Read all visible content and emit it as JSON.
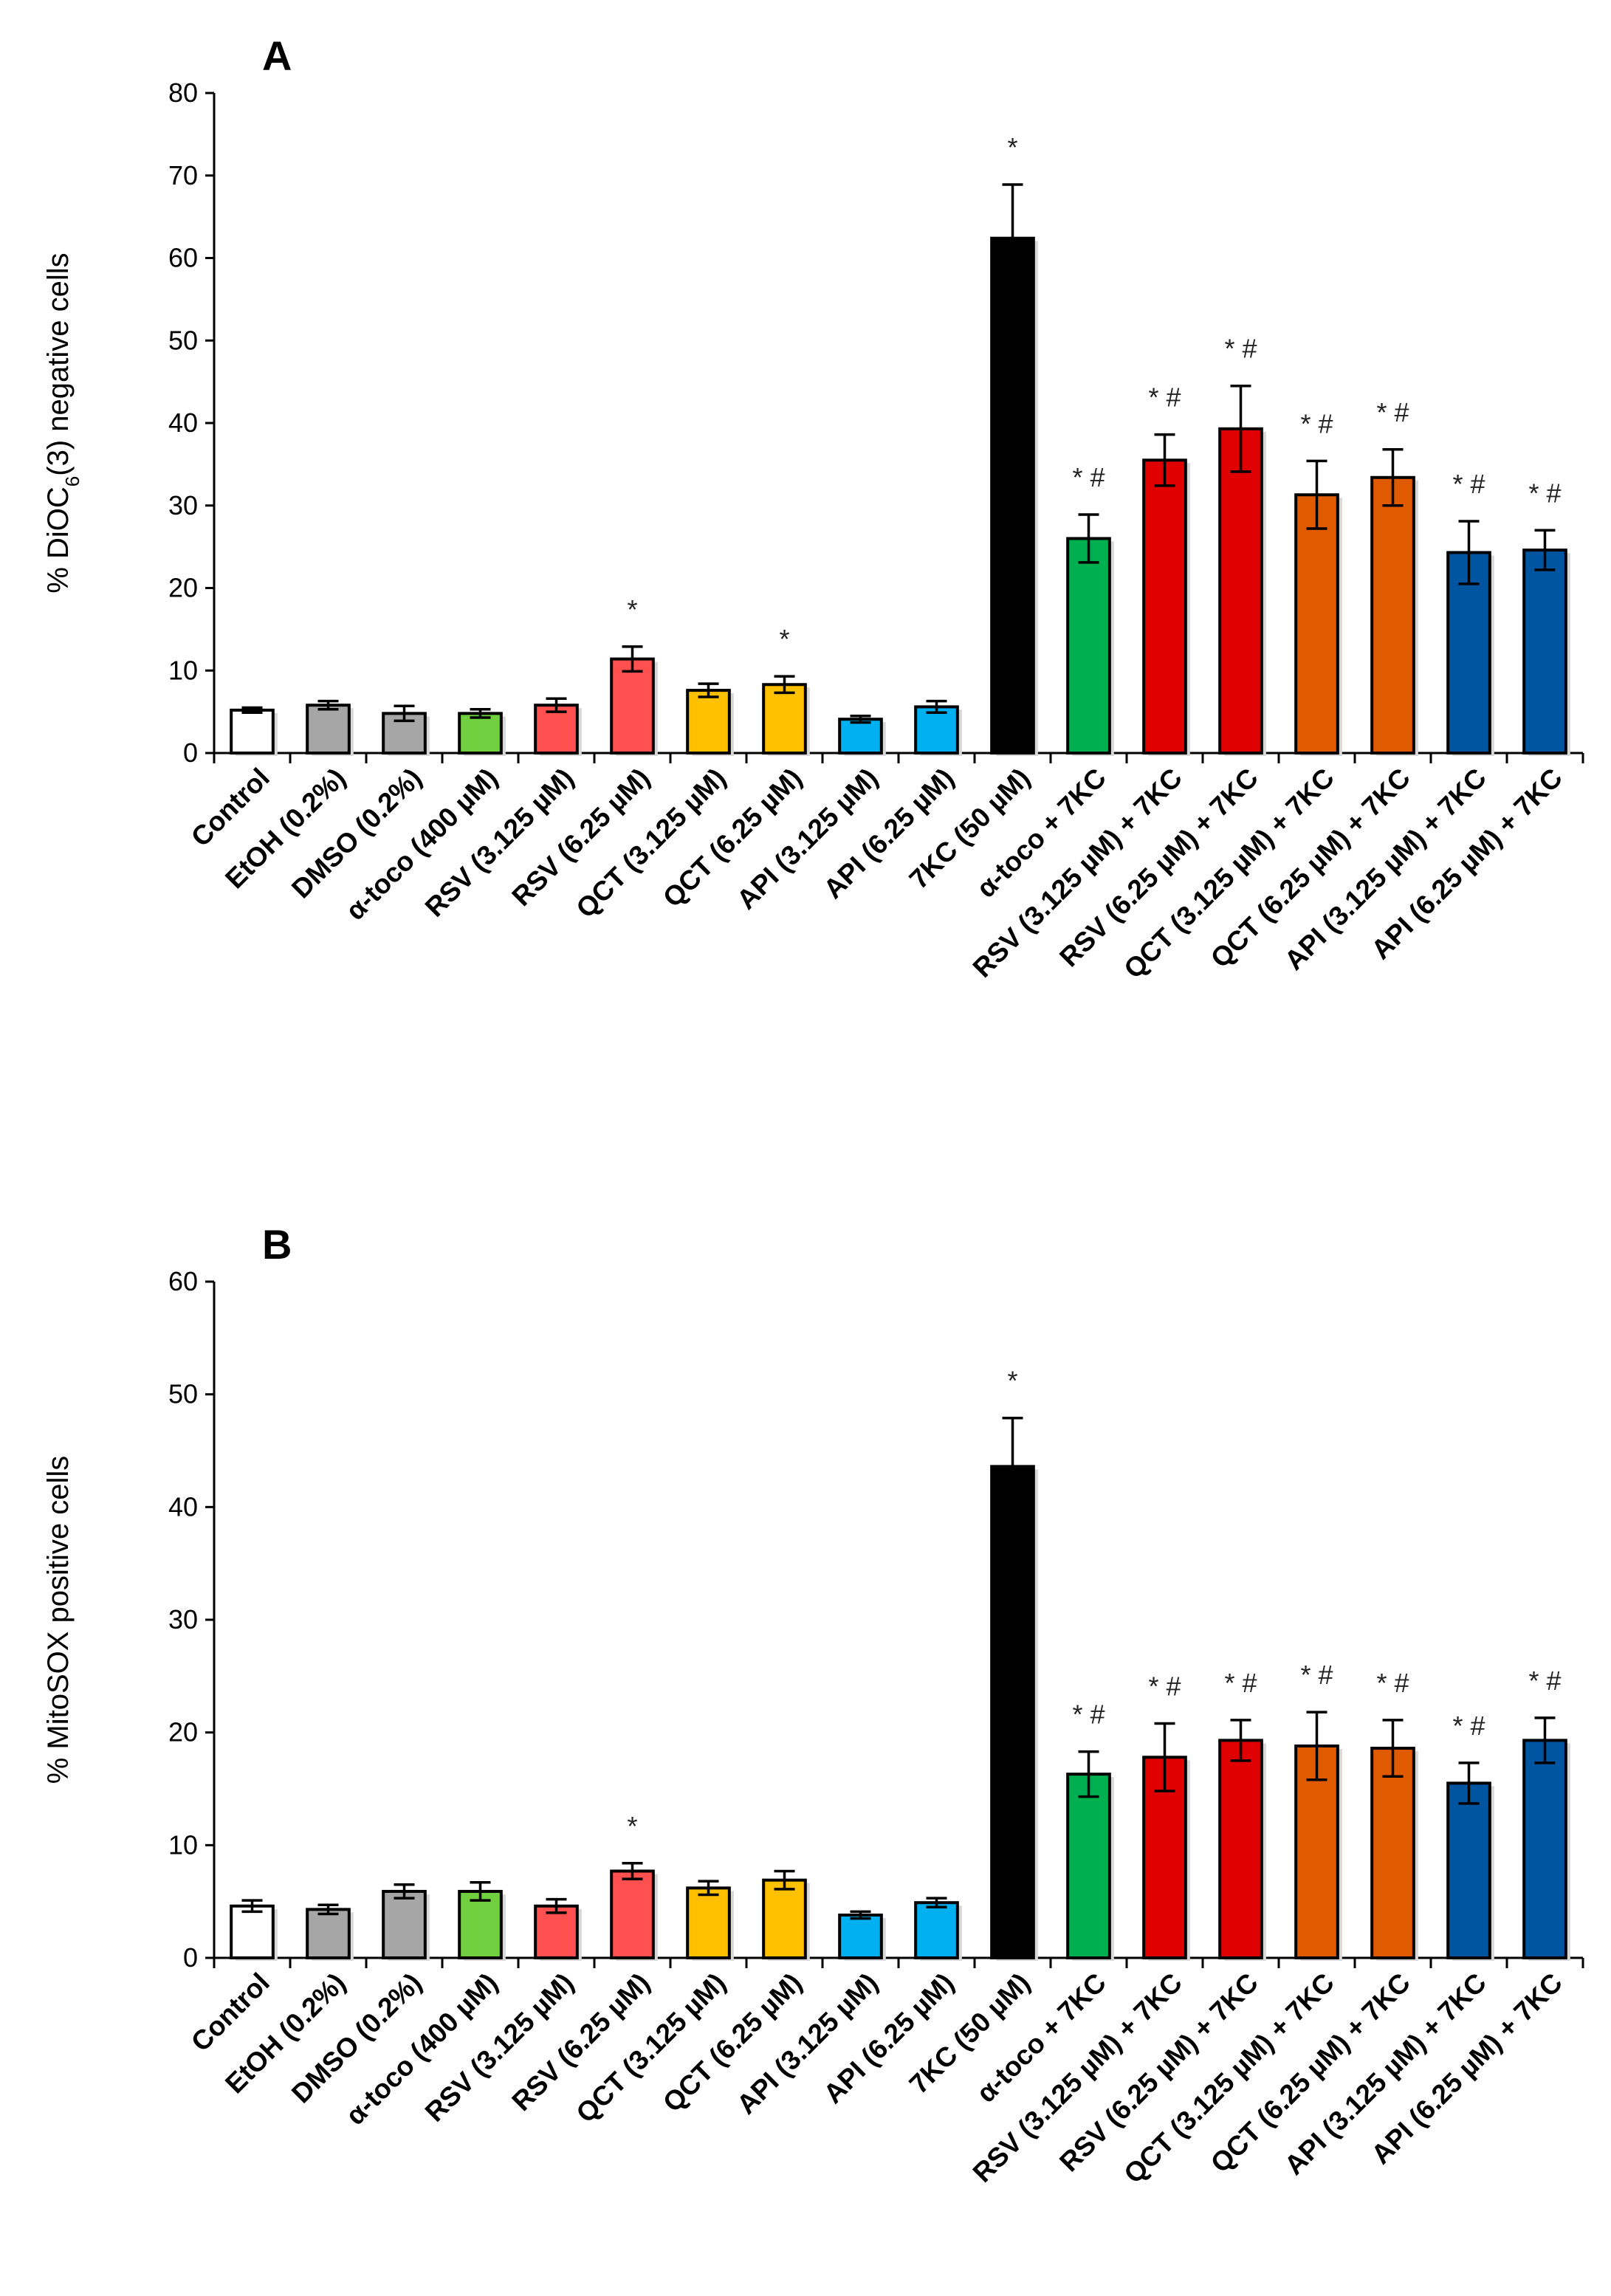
{
  "chart_data": [
    {
      "type": "bar",
      "panel": "A",
      "ylabel_parts": [
        "% DiOC",
        "6",
        "(3) negative cells"
      ],
      "ylim": [
        0,
        80
      ],
      "yticks": [
        0,
        10,
        20,
        30,
        40,
        50,
        60,
        70,
        80
      ],
      "categories": [
        "Control",
        "EtOH (0.2%)",
        "DMSO (0.2%)",
        "α-toco (400 µM)",
        "RSV (3.125 µM)",
        "RSV (6.25 µM)",
        "QCT (3.125 µM)",
        "QCT (6.25 µM)",
        "API (3.125 µM)",
        "API (6.25 µM)",
        "7KC (50 µM)",
        "α-toco + 7KC",
        "RSV (3.125 µM) + 7KC",
        "RSV (6.25 µM) + 7KC",
        "QCT (3.125 µM) + 7KC",
        "QCT (6.25 µM) + 7KC",
        "API (3.125 µM) + 7KC",
        "API (6.25 µM) + 7KC"
      ],
      "values": [
        5.2,
        5.8,
        4.8,
        4.8,
        5.8,
        11.4,
        7.6,
        8.3,
        4.1,
        5.6,
        62.4,
        26.0,
        35.5,
        39.3,
        31.3,
        33.4,
        24.3,
        24.6
      ],
      "errors": [
        0.3,
        0.5,
        0.9,
        0.5,
        0.8,
        1.5,
        0.8,
        1.0,
        0.4,
        0.7,
        6.5,
        2.9,
        3.1,
        5.2,
        4.1,
        3.4,
        3.8,
        2.4
      ],
      "annotations": [
        "",
        "",
        "",
        "",
        "",
        "*",
        "",
        "*",
        "",
        "",
        "*",
        "* #",
        "* #",
        "* #",
        "* #",
        "* #",
        "* #",
        "* #"
      ]
    },
    {
      "type": "bar",
      "panel": "B",
      "ylabel_parts": [
        "% MitoSOX positive cells",
        "",
        ""
      ],
      "ylim": [
        0,
        60
      ],
      "yticks": [
        0,
        10,
        20,
        30,
        40,
        50,
        60
      ],
      "categories": [
        "Control",
        "EtOH (0.2%)",
        "DMSO (0.2%)",
        "α-toco (400 µM)",
        "RSV (3.125 µM)",
        "RSV (6.25 µM)",
        "QCT (3.125 µM)",
        "QCT (6.25 µM)",
        "API (3.125 µM)",
        "API (6.25 µM)",
        "7KC (50 µM)",
        "α-toco + 7KC",
        "RSV (3.125 µM) + 7KC",
        "RSV (6.25 µM) + 7KC",
        "QCT (3.125 µM) + 7KC",
        "QCT (6.25 µM) + 7KC",
        "API (3.125 µM) + 7KC",
        "API (6.25 µM) + 7KC"
      ],
      "values": [
        4.6,
        4.3,
        5.9,
        5.9,
        4.6,
        7.7,
        6.2,
        6.9,
        3.8,
        4.9,
        43.6,
        16.3,
        17.8,
        19.3,
        18.8,
        18.6,
        15.5,
        19.3
      ],
      "errors": [
        0.5,
        0.4,
        0.6,
        0.8,
        0.6,
        0.7,
        0.6,
        0.8,
        0.3,
        0.4,
        4.3,
        2.0,
        3.0,
        1.8,
        3.0,
        2.5,
        1.8,
        2.0
      ],
      "annotations": [
        "",
        "",
        "",
        "",
        "",
        "*",
        "",
        "",
        "",
        "",
        "*",
        "* #",
        "* #",
        "* #",
        "* #",
        "* #",
        "* #",
        "* #"
      ]
    }
  ],
  "colors": [
    "#ffffff",
    "#a6a6a6",
    "#a6a6a6",
    "#70d040",
    "#ff5050",
    "#ff5050",
    "#ffc000",
    "#ffc000",
    "#00b0f0",
    "#00b0f0",
    "#000000",
    "#00b050",
    "#e00000",
    "#e00000",
    "#e05a00",
    "#e05a00",
    "#0055a0",
    "#0055a0"
  ]
}
